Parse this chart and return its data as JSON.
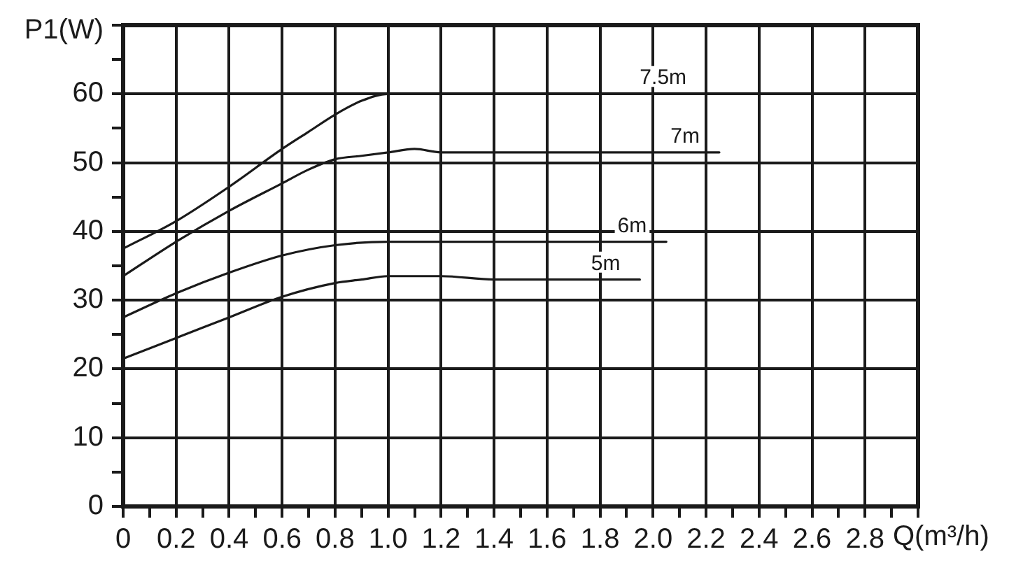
{
  "chart_data": {
    "type": "line",
    "xlabel": "Q(m³/h)",
    "ylabel": "P1(W)",
    "series": [
      {
        "name": "7.5m",
        "color": "#1a1a1a",
        "x": [
          0,
          0.2,
          0.4,
          0.6,
          0.7,
          0.8,
          0.9,
          1.0,
          1.2,
          1.6,
          2.0,
          2.2
        ],
        "values": [
          37.5,
          41.5,
          46.5,
          52,
          54.5,
          57,
          59,
          60,
          60,
          60,
          60,
          60
        ]
      },
      {
        "name": "7m",
        "color": "#1a1a1a",
        "x": [
          0,
          0.2,
          0.4,
          0.6,
          0.7,
          0.8,
          0.9,
          1.0,
          1.1,
          1.2,
          1.4,
          1.6,
          2.0,
          2.25
        ],
        "values": [
          33.5,
          38.5,
          43,
          47,
          49,
          50.5,
          51,
          51.5,
          52,
          51.5,
          51.5,
          51.5,
          51.5,
          51.5
        ]
      },
      {
        "name": "6m",
        "color": "#1a1a1a",
        "x": [
          0,
          0.2,
          0.4,
          0.6,
          0.8,
          1.0,
          1.4,
          1.8,
          2.05
        ],
        "values": [
          27.5,
          31,
          34,
          36.5,
          38,
          38.5,
          38.5,
          38.5,
          38.5
        ]
      },
      {
        "name": "5m",
        "color": "#1a1a1a",
        "x": [
          0,
          0.2,
          0.4,
          0.6,
          0.8,
          0.9,
          1.0,
          1.2,
          1.4,
          1.6,
          1.95
        ],
        "values": [
          21.5,
          24.5,
          27.5,
          30.5,
          32.5,
          33,
          33.5,
          33.5,
          33,
          33,
          33
        ]
      }
    ],
    "xlim": [
      0,
      3
    ],
    "xticks": [
      0,
      {
        "value": 0.1,
        "label": null
      },
      0.2,
      {
        "value": 0.3,
        "label": null
      },
      0.4,
      {
        "value": 0.5,
        "label": null
      },
      0.6,
      {
        "value": 0.7,
        "label": null
      },
      0.8,
      {
        "value": 0.9,
        "label": null
      },
      {
        "value": 1,
        "label": "1.0"
      },
      {
        "value": 1.1,
        "label": null
      },
      1.2,
      {
        "value": 1.3,
        "label": null
      },
      1.4,
      {
        "value": 1.5,
        "label": null
      },
      1.6,
      {
        "value": 1.7,
        "label": null
      },
      1.8,
      {
        "value": 1.9,
        "label": null
      },
      {
        "value": 2,
        "label": "2.0"
      },
      {
        "value": 2.1,
        "label": null
      },
      2.2,
      {
        "value": 2.3,
        "label": null
      },
      2.4,
      {
        "value": 2.5,
        "label": null
      },
      2.6,
      {
        "value": 2.7,
        "label": null
      },
      2.8,
      {
        "value": 2.9,
        "label": null
      },
      {
        "value": 3,
        "label": null
      }
    ],
    "ylim": [
      0,
      70
    ],
    "yticks": [
      0,
      {
        "value": 5,
        "label": null
      },
      10,
      {
        "value": 15,
        "label": null
      },
      20,
      {
        "value": 25,
        "label": null
      },
      30,
      {
        "value": 35,
        "label": null
      },
      40,
      {
        "value": 45,
        "label": null
      },
      50,
      {
        "value": 55,
        "label": null
      },
      60,
      {
        "value": 65,
        "label": null
      },
      {
        "value": 70,
        "label": null
      }
    ],
    "grid": true,
    "legend": false,
    "marker": "none",
    "line_style": "solid"
  }
}
